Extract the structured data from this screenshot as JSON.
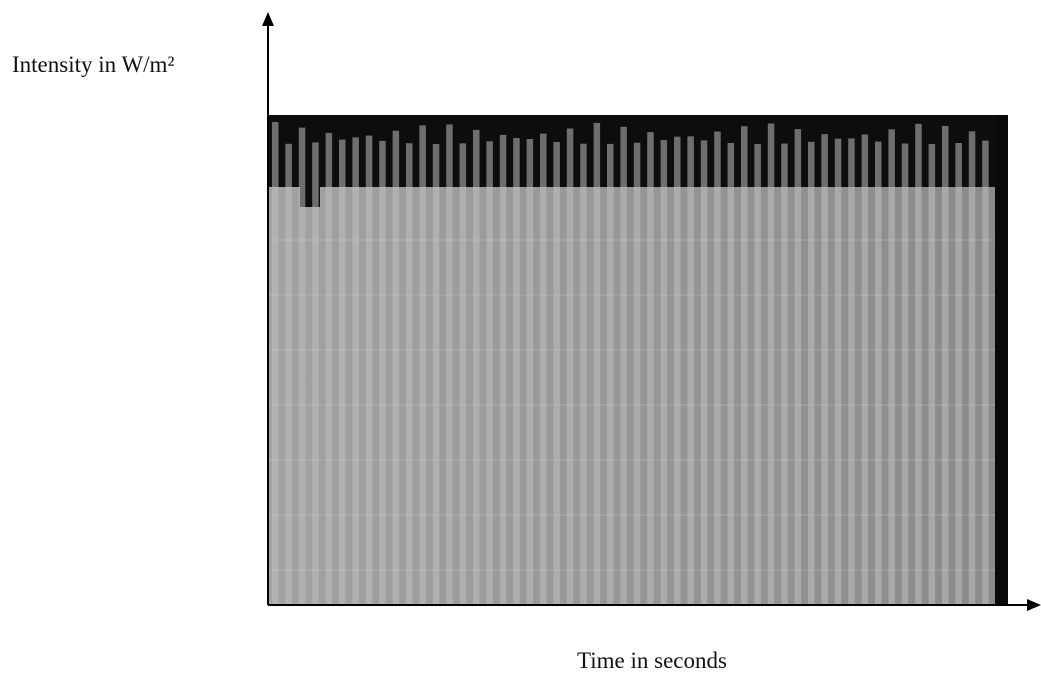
{
  "axes": {
    "y_label": "Intensity in W/m²",
    "x_label": "Time in seconds"
  }
}
